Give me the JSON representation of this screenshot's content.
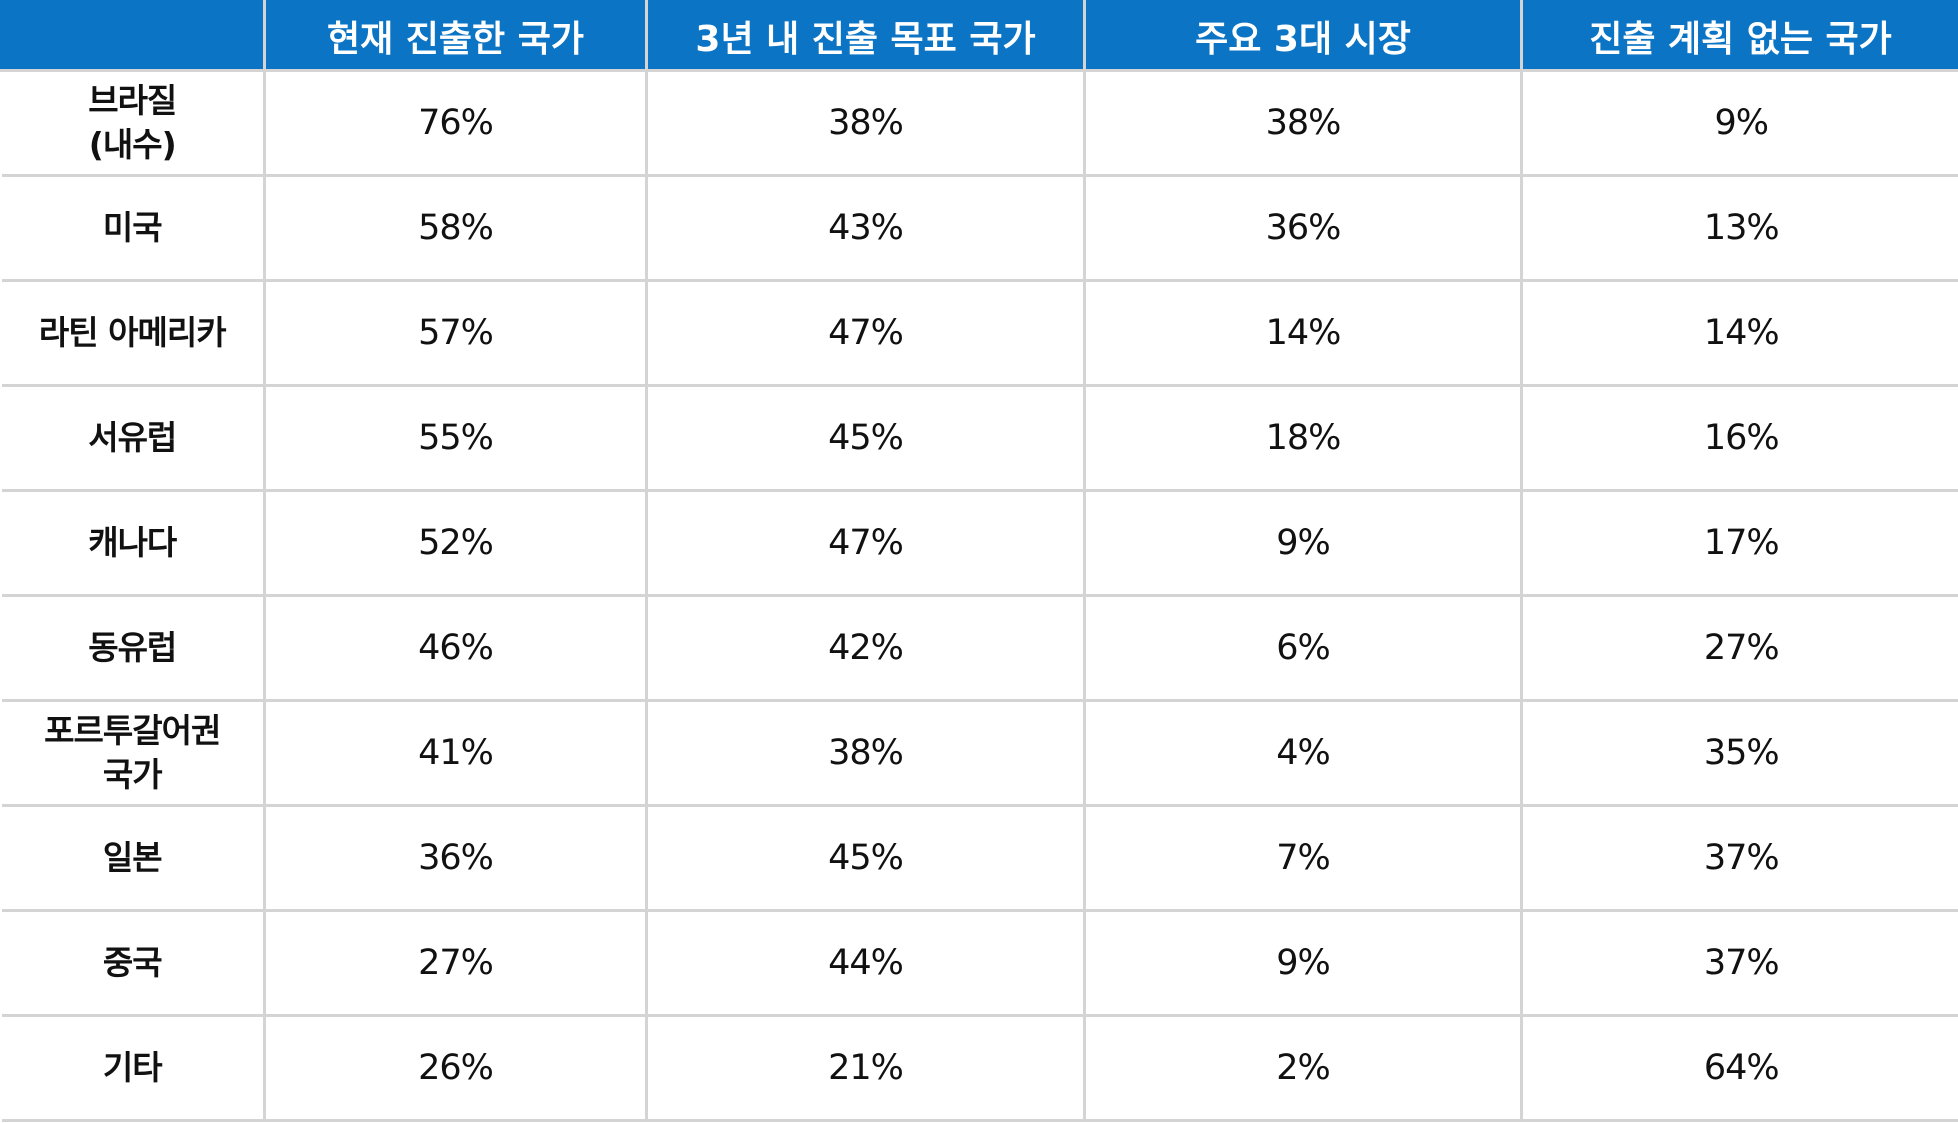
{
  "colors": {
    "header_bg": "#0b74c4",
    "header_text": "#ffffff",
    "grid_line": "#d4d4d4",
    "body_text": "#111111"
  },
  "chart_data": {
    "type": "table",
    "columns": [
      "",
      "현재 진출한 국가",
      "3년 내 진출 목표 국가",
      "주요 3대 시장",
      "진출 계획 없는 국가"
    ],
    "rows": [
      {
        "label": "브라질\n(내수)",
        "values": [
          "76%",
          "38%",
          "38%",
          "9%"
        ]
      },
      {
        "label": "미국",
        "values": [
          "58%",
          "43%",
          "36%",
          "13%"
        ]
      },
      {
        "label": "라틴 아메리카",
        "values": [
          "57%",
          "47%",
          "14%",
          "14%"
        ]
      },
      {
        "label": "서유럽",
        "values": [
          "55%",
          "45%",
          "18%",
          "16%"
        ]
      },
      {
        "label": "캐나다",
        "values": [
          "52%",
          "47%",
          "9%",
          "17%"
        ]
      },
      {
        "label": "동유럽",
        "values": [
          "46%",
          "42%",
          "6%",
          "27%"
        ]
      },
      {
        "label": "포르투갈어권\n국가",
        "values": [
          "41%",
          "38%",
          "4%",
          "35%"
        ]
      },
      {
        "label": "일본",
        "values": [
          "36%",
          "45%",
          "7%",
          "37%"
        ]
      },
      {
        "label": "중국",
        "values": [
          "27%",
          "44%",
          "9%",
          "37%"
        ]
      },
      {
        "label": "기타",
        "values": [
          "26%",
          "21%",
          "2%",
          "64%"
        ]
      }
    ]
  }
}
